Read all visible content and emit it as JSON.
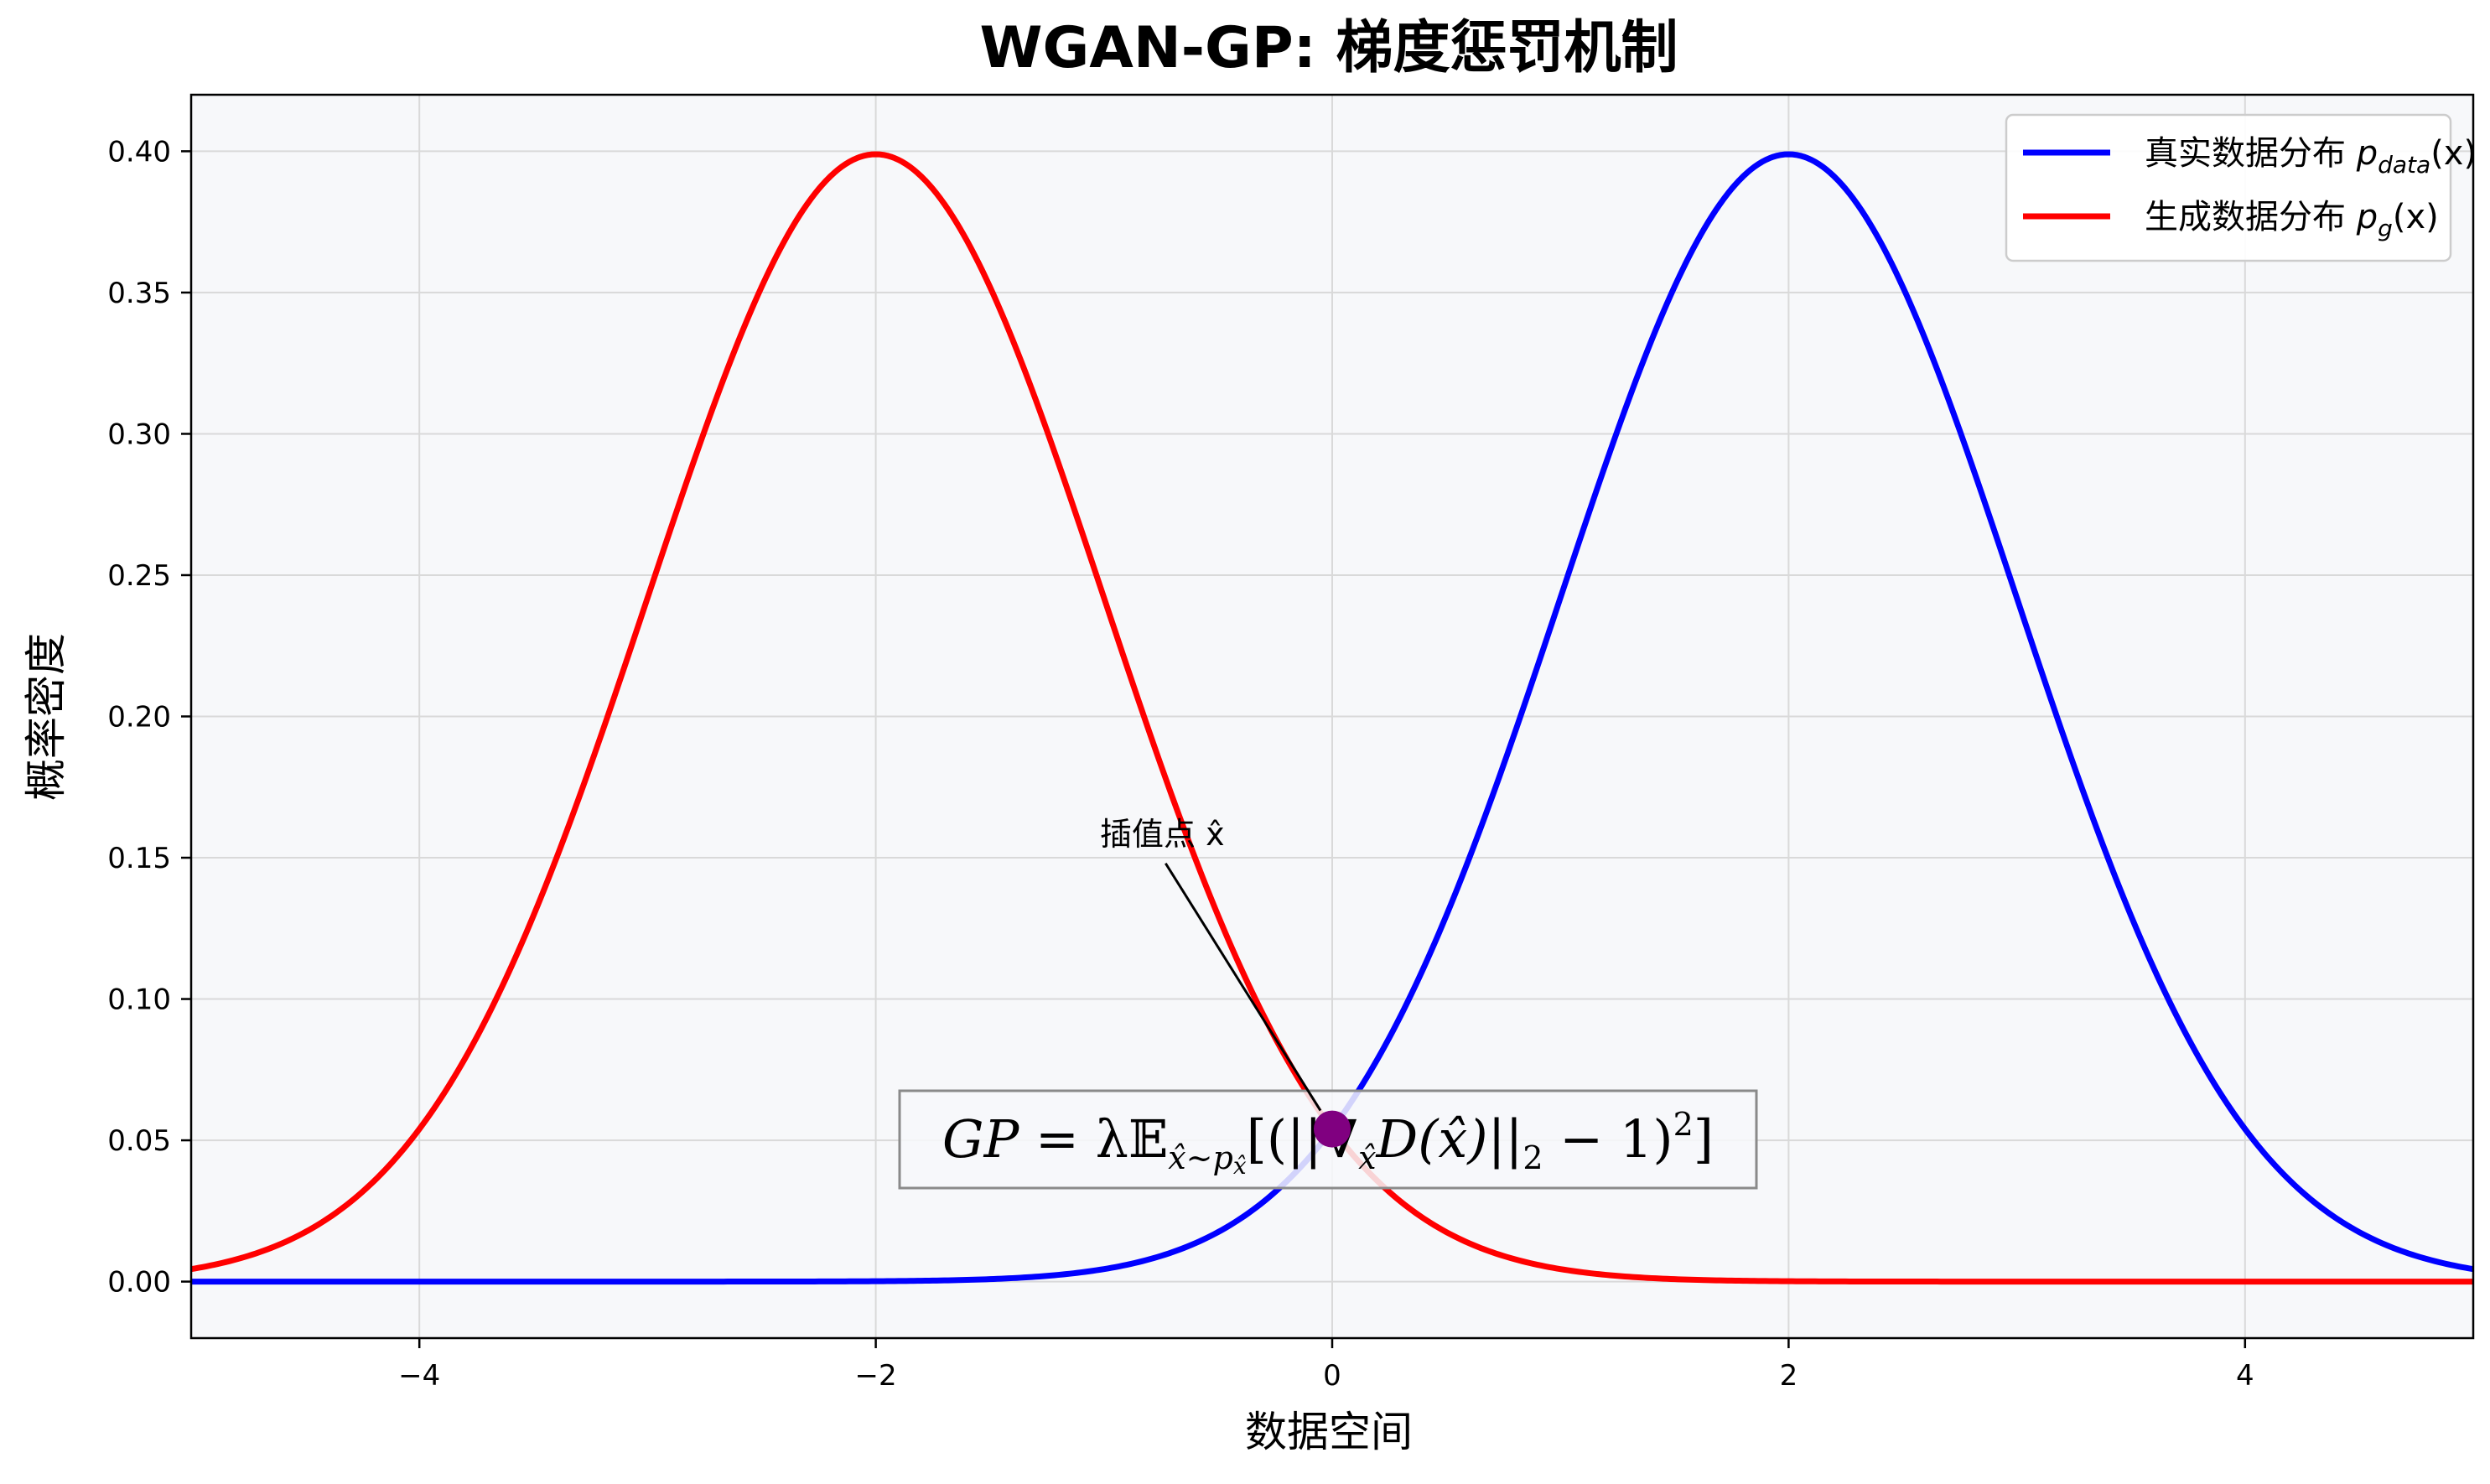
{
  "chart_data": {
    "type": "line",
    "title": "WGAN-GP: 梯度惩罚机制",
    "xlabel": "数据空间",
    "ylabel": "概率密度",
    "xlim": [
      -5,
      5
    ],
    "ylim": [
      -0.02,
      0.42
    ],
    "grid": true,
    "xticks": [
      -4,
      -2,
      0,
      2,
      4
    ],
    "xtick_labels": [
      "−4",
      "−2",
      "0",
      "2",
      "4"
    ],
    "yticks": [
      0.0,
      0.05,
      0.1,
      0.15,
      0.2,
      0.25,
      0.3,
      0.35,
      0.4
    ],
    "ytick_labels": [
      "0.00",
      "0.05",
      "0.10",
      "0.15",
      "0.20",
      "0.25",
      "0.30",
      "0.35",
      "0.40"
    ],
    "series": [
      {
        "name": "真实数据分布 p_data(x)",
        "distribution": "normal",
        "mean": 2,
        "std": 1,
        "color": "#0000ff"
      },
      {
        "name": "生成数据分布 p_g(x)",
        "distribution": "normal",
        "mean": -2,
        "std": 1,
        "color": "#ff0000"
      }
    ],
    "legend": {
      "position": "top-right",
      "entries": [
        {
          "prefix": "真实数据分布 ",
          "math": "p",
          "sub": "data",
          "suffix": "(x)",
          "color": "#0000ff"
        },
        {
          "prefix": "生成数据分布 ",
          "math": "p",
          "sub": "g",
          "suffix": "(x)",
          "color": "#ff0000"
        }
      ]
    },
    "interpolation_point": {
      "x": 0.0,
      "y": 0.054,
      "color": "#800080"
    },
    "annotation": {
      "label": "插值点 x̂",
      "text_x": -0.73,
      "text_y": 0.148
    },
    "formula": {
      "text": "GP = λ𝔼_x̂~p_x̂[(||∇_x̂D(x̂)||₂ − 1)²]",
      "x": 0.0,
      "y": 0.05
    }
  }
}
